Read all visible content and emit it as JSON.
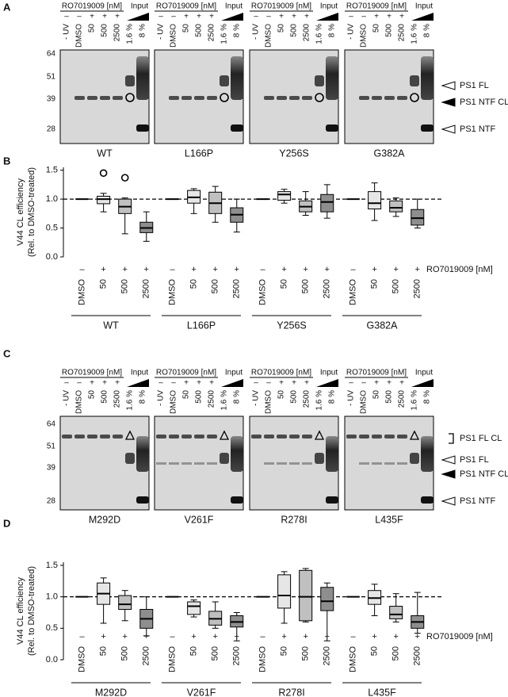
{
  "panel_letters": [
    "A",
    "B",
    "C",
    "D"
  ],
  "blot_A": {
    "treatment_label": "RO7019009 [nM]",
    "input_label": "Input",
    "signs": [
      "–",
      "–",
      "+",
      "+",
      "+"
    ],
    "lanes": [
      "- UV",
      "DMSO",
      "50",
      "500",
      "2500",
      "1.6 %",
      "8 %"
    ],
    "mw_markers": [
      "64",
      "51",
      "39",
      "28"
    ],
    "blots": [
      "WT",
      "L166P",
      "Y256S",
      "G382A"
    ],
    "band_labels": [
      "PS1 FL",
      "PS1 NTF CL",
      "PS1 NTF"
    ]
  },
  "blot_C": {
    "treatment_label": "RO7019009 [nM]",
    "input_label": "Input",
    "signs": [
      "–",
      "–",
      "+",
      "+",
      "+"
    ],
    "lanes": [
      "- UV",
      "DMSO",
      "50",
      "500",
      "2500",
      "1.6 %",
      "8 %"
    ],
    "mw_markers": [
      "64",
      "51",
      "39",
      "28"
    ],
    "blots": [
      "M292D",
      "V261F",
      "R278I",
      "L435F"
    ],
    "band_labels": [
      "PS1 FL CL",
      "PS1 FL",
      "PS1 NTF CL",
      "PS1 NTF"
    ]
  },
  "chart_data": [
    {
      "type": "box",
      "y_label_lines": [
        "V44 CL efficiency",
        "(Rel. to DMSO-treated)"
      ],
      "treatment_label": "RO7019009 [nM]",
      "signs": [
        "–",
        "+",
        "+",
        "+"
      ],
      "categories": [
        "DMSO",
        "50",
        "500",
        "2500"
      ],
      "colors": [
        "#ffffff",
        "#e6e6e6",
        "#c0c0c0",
        "#8e8e8e"
      ],
      "ylim": [
        0,
        1.55
      ],
      "yticks": [
        {
          "value": 0,
          "label": "0.0"
        },
        {
          "value": 0.5,
          "label": "0.5"
        },
        {
          "value": 1,
          "label": "1.0"
        },
        {
          "value": 1.5,
          "label": "1.5"
        }
      ],
      "reference_line": 1,
      "groups": [
        {
          "name": "WT",
          "boxes": [
            {
              "min": 1,
              "q1": 1,
              "median": 1,
              "q3": 1,
              "max": 1,
              "outliers": []
            },
            {
              "min": 0.78,
              "q1": 0.92,
              "median": 1,
              "q3": 1.05,
              "max": 1.1,
              "outliers": [
                1.45
              ]
            },
            {
              "min": 0.4,
              "q1": 0.75,
              "median": 0.87,
              "q3": 1,
              "max": 1.02,
              "outliers": [
                1.37
              ]
            },
            {
              "min": 0.27,
              "q1": 0.42,
              "median": 0.5,
              "q3": 0.6,
              "max": 0.78,
              "outliers": []
            }
          ]
        },
        {
          "name": "L166P",
          "boxes": [
            {
              "min": 1,
              "q1": 1,
              "median": 1,
              "q3": 1,
              "max": 1,
              "outliers": []
            },
            {
              "min": 0.75,
              "q1": 0.93,
              "median": 1.03,
              "q3": 1.15,
              "max": 1.18,
              "outliers": []
            },
            {
              "min": 0.6,
              "q1": 0.75,
              "median": 0.93,
              "q3": 1.12,
              "max": 1.22,
              "outliers": []
            },
            {
              "min": 0.43,
              "q1": 0.6,
              "median": 0.73,
              "q3": 0.85,
              "max": 1,
              "outliers": []
            }
          ]
        },
        {
          "name": "Y256S",
          "boxes": [
            {
              "min": 1,
              "q1": 1,
              "median": 1,
              "q3": 1,
              "max": 1,
              "outliers": []
            },
            {
              "min": 0.93,
              "q1": 0.98,
              "median": 1.08,
              "q3": 1.13,
              "max": 1.17,
              "outliers": []
            },
            {
              "min": 0.72,
              "q1": 0.78,
              "median": 0.87,
              "q3": 0.97,
              "max": 1.13,
              "outliers": []
            },
            {
              "min": 0.67,
              "q1": 0.78,
              "median": 0.95,
              "q3": 1.08,
              "max": 1.25,
              "outliers": []
            }
          ]
        },
        {
          "name": "G382A",
          "boxes": [
            {
              "min": 1,
              "q1": 1,
              "median": 1,
              "q3": 1,
              "max": 1,
              "outliers": []
            },
            {
              "min": 0.63,
              "q1": 0.83,
              "median": 0.93,
              "q3": 1.13,
              "max": 1.28,
              "outliers": []
            },
            {
              "min": 0.7,
              "q1": 0.78,
              "median": 0.85,
              "q3": 0.97,
              "max": 1.02,
              "outliers": []
            },
            {
              "min": 0.5,
              "q1": 0.55,
              "median": 0.67,
              "q3": 0.82,
              "max": 1,
              "outliers": []
            }
          ]
        }
      ]
    },
    {
      "type": "box",
      "y_label_lines": [
        "V44 CL efficiency",
        "(Rel. to DMSO-treated)"
      ],
      "treatment_label": "RO7019009 [nM]",
      "signs": [
        "–",
        "+",
        "+",
        "+"
      ],
      "categories": [
        "DMSO",
        "50",
        "500",
        "2500"
      ],
      "colors": [
        "#ffffff",
        "#e6e6e6",
        "#c0c0c0",
        "#8e8e8e"
      ],
      "ylim": [
        0,
        1.55
      ],
      "yticks": [
        {
          "value": 0,
          "label": "0.0"
        },
        {
          "value": 0.5,
          "label": "0.5"
        },
        {
          "value": 1,
          "label": "1.0"
        },
        {
          "value": 1.5,
          "label": "1.5"
        }
      ],
      "reference_line": 1,
      "groups": [
        {
          "name": "M292D",
          "boxes": [
            {
              "min": 1,
              "q1": 1,
              "median": 1,
              "q3": 1,
              "max": 1,
              "outliers": []
            },
            {
              "min": 0.58,
              "q1": 0.88,
              "median": 1.05,
              "q3": 1.22,
              "max": 1.3,
              "outliers": []
            },
            {
              "min": 0.62,
              "q1": 0.8,
              "median": 0.88,
              "q3": 1.02,
              "max": 1.1,
              "outliers": []
            },
            {
              "min": 0.38,
              "q1": 0.5,
              "median": 0.65,
              "q3": 0.8,
              "max": 1,
              "outliers": []
            }
          ]
        },
        {
          "name": "V261F",
          "boxes": [
            {
              "min": 1,
              "q1": 1,
              "median": 1,
              "q3": 1,
              "max": 1,
              "outliers": []
            },
            {
              "min": 0.68,
              "q1": 0.72,
              "median": 0.85,
              "q3": 0.92,
              "max": 0.95,
              "outliers": []
            },
            {
              "min": 0.5,
              "q1": 0.55,
              "median": 0.65,
              "q3": 0.77,
              "max": 0.92,
              "outliers": []
            },
            {
              "min": 0.3,
              "q1": 0.52,
              "median": 0.6,
              "q3": 0.7,
              "max": 0.75,
              "outliers": []
            }
          ]
        },
        {
          "name": "R278I",
          "boxes": [
            {
              "min": 1,
              "q1": 1,
              "median": 1,
              "q3": 1,
              "max": 1,
              "outliers": []
            },
            {
              "min": 0.58,
              "q1": 0.82,
              "median": 1.02,
              "q3": 1.35,
              "max": 1.4,
              "outliers": []
            },
            {
              "min": 0.6,
              "q1": 0.62,
              "median": 1,
              "q3": 1.42,
              "max": 1.45,
              "outliers": []
            },
            {
              "min": 0.3,
              "q1": 0.78,
              "median": 0.93,
              "q3": 1.15,
              "max": 1.22,
              "outliers": []
            }
          ]
        },
        {
          "name": "L435F",
          "boxes": [
            {
              "min": 1,
              "q1": 1,
              "median": 1,
              "q3": 1,
              "max": 1,
              "outliers": []
            },
            {
              "min": 0.7,
              "q1": 0.88,
              "median": 0.98,
              "q3": 1.1,
              "max": 1.2,
              "outliers": []
            },
            {
              "min": 0.6,
              "q1": 0.65,
              "median": 0.72,
              "q3": 0.85,
              "max": 1.05,
              "outliers": []
            },
            {
              "min": 0.42,
              "q1": 0.5,
              "median": 0.6,
              "q3": 0.7,
              "max": 1.07,
              "outliers": []
            }
          ]
        }
      ]
    }
  ]
}
